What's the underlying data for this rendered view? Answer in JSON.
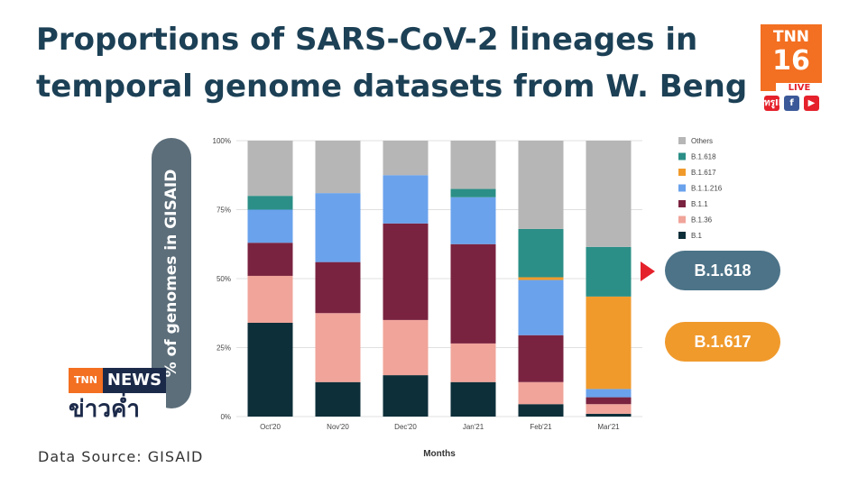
{
  "title": "Proportions of SARS-CoV-2 lineages in\ntemporal genome datasets from W. Beng",
  "source": "Data Source: GISAID",
  "broadcaster": {
    "logo_text": "TNN",
    "logo_number": "16",
    "live": "LIVE",
    "news_prefix": "TNN",
    "news_label": "NEWS",
    "news_thai": "ข่าวค่ำ",
    "social": [
      "ทรูID",
      "f",
      "▶"
    ]
  },
  "callouts": [
    {
      "label": "B.1.618",
      "color": "#4c7388"
    },
    {
      "label": "B.1.617",
      "color": "#f09a2c"
    }
  ],
  "arrow_color": "#e5212b",
  "chart_data": {
    "type": "bar",
    "stacked": true,
    "categories": [
      "Oct'20",
      "Nov'20",
      "Dec'20",
      "Jan'21",
      "Feb'21",
      "Mar'21"
    ],
    "xlabel": "Months",
    "ylabel": "% of genomes in GISAID",
    "ylim": [
      0,
      100
    ],
    "yticks": [
      "0%",
      "25%",
      "50%",
      "75%",
      "100%"
    ],
    "legend_position": "right",
    "grid": true,
    "series": [
      {
        "name": "B.1",
        "color": "#0d2f3a",
        "values": [
          34,
          12.5,
          15,
          12.5,
          4.5,
          1
        ]
      },
      {
        "name": "B.1.36",
        "color": "#f0a49a",
        "values": [
          17,
          25,
          20,
          14,
          8,
          3.5
        ]
      },
      {
        "name": "B.1.1",
        "color": "#7a2340",
        "values": [
          12,
          18.5,
          35,
          36,
          17,
          2.5
        ]
      },
      {
        "name": "B.1.1.216",
        "color": "#6aa2ec",
        "values": [
          12,
          25,
          17.5,
          17,
          20,
          3
        ]
      },
      {
        "name": "B.1.617",
        "color": "#f09a2c",
        "values": [
          0,
          0,
          0,
          0,
          1,
          33.5
        ]
      },
      {
        "name": "B.1.618",
        "color": "#2b8f87",
        "values": [
          5,
          0,
          0,
          3,
          17.5,
          18
        ]
      },
      {
        "name": "Others",
        "color": "#b6b6b6",
        "values": [
          20,
          19,
          12.5,
          17.5,
          32,
          38.5
        ]
      }
    ],
    "legend_order": [
      "Others",
      "B.1.618",
      "B.1.617",
      "B.1.1.216",
      "B.1.1",
      "B.1.36",
      "B.1"
    ]
  }
}
